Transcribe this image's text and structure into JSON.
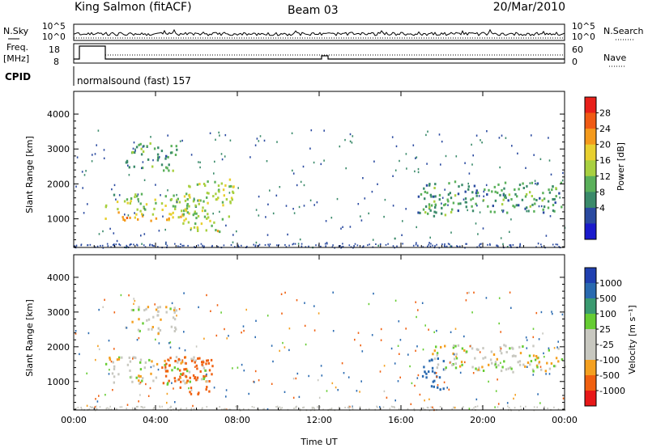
{
  "header": {
    "station": "King Salmon (fitACF)",
    "beam": "Beam 03",
    "date": "20/Mar/2010"
  },
  "top_panels": {
    "nsky_label": "N.Sky",
    "nsky_ticks": [
      "10^5",
      "10^0"
    ],
    "nsearch_label": "N.Search",
    "nsearch_ticks": [
      "10^5",
      "10^0"
    ],
    "freq_label_1": "Freq.",
    "freq_label_2": "[MHz]",
    "freq_ticks": [
      "18",
      "8"
    ],
    "nave_label": "Nave",
    "nave_ticks": [
      "60",
      "0"
    ],
    "cpid_label": "CPID",
    "cpid_text": "normalsound (fast) 157"
  },
  "power_panel": {
    "ylabel": "Slant Range [km]",
    "yticks": [
      "4000",
      "3000",
      "2000",
      "1000"
    ],
    "colorbar_label": "Power [dB]",
    "colorbar_ticks": [
      "28",
      "24",
      "20",
      "16",
      "12",
      "8",
      "4"
    ],
    "colorbar_colors": [
      "#e8201a",
      "#f05a14",
      "#f49a1c",
      "#e8d030",
      "#a8d040",
      "#5ab05a",
      "#3a8a6a",
      "#2a4aa0",
      "#1a1acc"
    ]
  },
  "velocity_panel": {
    "ylabel": "Slant Range [km]",
    "yticks": [
      "4000",
      "3000",
      "2000",
      "1000"
    ],
    "colorbar_label": "Velocity [m s⁻¹]",
    "colorbar_ticks": [
      "1000",
      "500",
      "100",
      "25",
      "-25",
      "-100",
      "-500",
      "-1000"
    ],
    "colorbar_colors": [
      "#2040b0",
      "#2a6ab0",
      "#3a9a70",
      "#66cc33",
      "#c8c8c0",
      "#c8c8c0",
      "#f4a020",
      "#f06010",
      "#e81818"
    ]
  },
  "x_axis": {
    "ticks": [
      "00:00",
      "04:00",
      "08:00",
      "12:00",
      "16:00",
      "20:00",
      "00:00"
    ],
    "label": "Time UT"
  },
  "chart_data": [
    {
      "type": "heatmap",
      "xlabel": "Time UT",
      "ylabel": "Slant Range [km]",
      "xlim": [
        0,
        24
      ],
      "ylim": [
        180,
        4650
      ],
      "colorbar": {
        "label": "Power [dB]",
        "ticks": [
          28,
          24,
          20,
          16,
          12,
          8,
          4
        ]
      },
      "regions": [
        {
          "t0": 1.5,
          "t1": 5.3,
          "r0": 950,
          "r1": 1250,
          "power_db": 22
        },
        {
          "t0": 1.5,
          "t1": 6.5,
          "r0": 1250,
          "r1": 1750,
          "power_db": 14
        },
        {
          "t0": 5.3,
          "t1": 7.8,
          "r0": 1000,
          "r1": 2200,
          "power_db": 16
        },
        {
          "t0": 5.3,
          "t1": 7.2,
          "r0": 600,
          "r1": 1000,
          "power_db": 18
        },
        {
          "t0": 2.5,
          "t1": 5.0,
          "r0": 2400,
          "r1": 3200,
          "power_db": 10
        },
        {
          "t0": 16.8,
          "t1": 24.0,
          "r0": 1200,
          "r1": 2100,
          "power_db": 10
        },
        {
          "t0": 17.0,
          "t1": 18.2,
          "r0": 1000,
          "r1": 1500,
          "power_db": 12
        }
      ]
    },
    {
      "type": "heatmap",
      "xlabel": "Time UT",
      "ylabel": "Slant Range [km]",
      "xlim": [
        0,
        24
      ],
      "ylim": [
        180,
        4650
      ],
      "colorbar": {
        "label": "Velocity [m s⁻¹]",
        "ticks": [
          1000,
          500,
          100,
          25,
          -25,
          -100,
          -500,
          -1000
        ]
      },
      "regions": [
        {
          "t0": 1.5,
          "t1": 6.5,
          "r0": 950,
          "r1": 1750,
          "velocity": 0
        },
        {
          "t0": 4.2,
          "t1": 6.8,
          "r0": 650,
          "r1": 1750,
          "velocity": -300
        },
        {
          "t0": 2.5,
          "t1": 5.0,
          "r0": 2400,
          "r1": 3200,
          "velocity": 0
        },
        {
          "t0": 17.0,
          "t1": 18.2,
          "r0": 800,
          "r1": 1700,
          "velocity": 150
        },
        {
          "t0": 17.5,
          "t1": 24.0,
          "r0": 1300,
          "r1": 2100,
          "velocity": 0
        }
      ]
    }
  ]
}
